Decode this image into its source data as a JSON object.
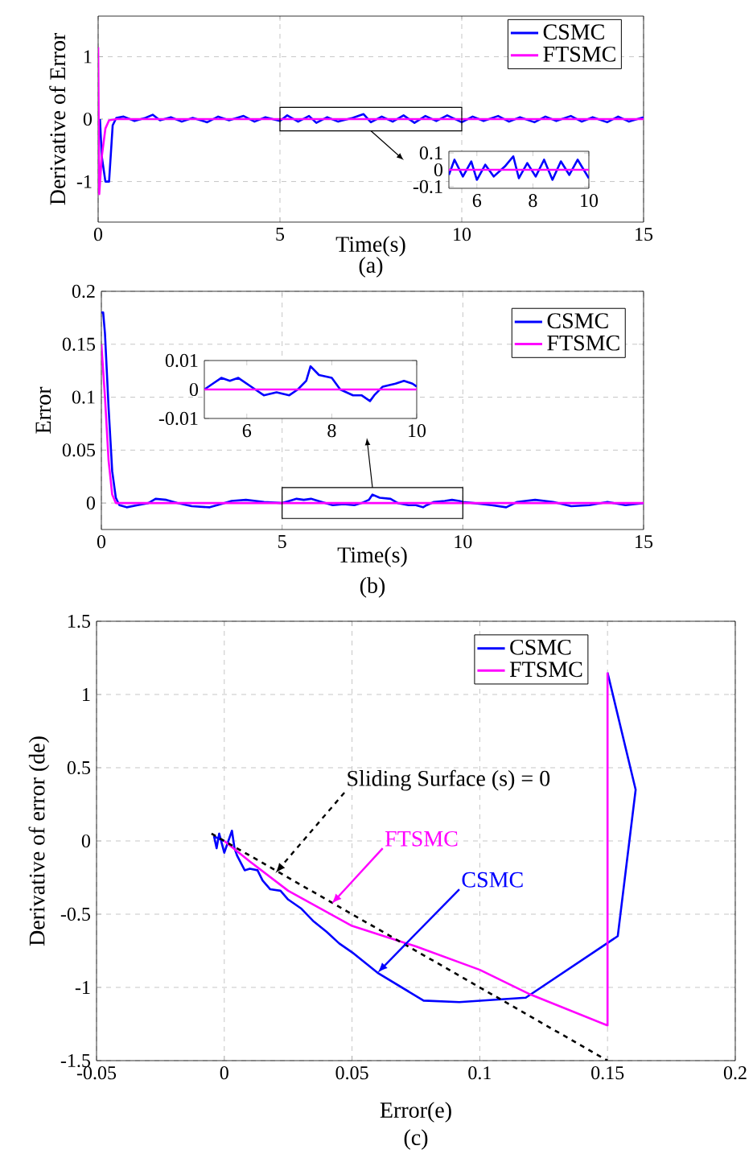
{
  "chart_data": [
    {
      "type": "line",
      "xlabel": "Time(s)",
      "ylabel": "Derivative of Error",
      "xlim": [
        0,
        15
      ],
      "ylim": [
        -1.65,
        1.65
      ],
      "xticks": [
        0,
        5,
        10,
        15
      ],
      "yticks": [
        -1,
        0,
        1
      ],
      "grid": true,
      "legend": "top right",
      "annotations": [
        "(a)"
      ],
      "series": [
        {
          "name": "CSMC",
          "color": "#0000ff",
          "x": [
            0.05,
            0.1,
            0.2,
            0.3,
            0.4,
            0.5,
            0.7,
            1.0,
            1.3,
            1.5,
            1.7,
            2.0,
            2.3,
            2.6,
            3.0,
            3.3,
            3.6,
            4.0,
            4.3,
            4.6,
            5.0,
            5.2,
            5.5,
            5.8,
            6.0,
            6.3,
            6.6,
            7.0,
            7.3,
            7.5,
            7.8,
            8.1,
            8.4,
            8.7,
            9.0,
            9.3,
            9.6,
            10.0,
            10.3,
            10.6,
            11.0,
            11.3,
            11.6,
            12.0,
            12.3,
            12.6,
            13.0,
            13.3,
            13.6,
            14.0,
            14.3,
            14.6,
            15.0
          ],
          "values": [
            0,
            -0.6,
            -1.0,
            -1.0,
            -0.1,
            0.02,
            0.04,
            -0.03,
            0.02,
            0.07,
            -0.02,
            0.03,
            -0.04,
            0.02,
            -0.05,
            0.04,
            -0.02,
            0.05,
            -0.04,
            0.03,
            -0.03,
            0.06,
            -0.04,
            0.05,
            -0.06,
            0.03,
            -0.04,
            0.02,
            0.08,
            -0.05,
            0.04,
            -0.04,
            0.06,
            -0.06,
            0.05,
            -0.03,
            0.06,
            -0.05,
            0.04,
            -0.03,
            0.05,
            -0.04,
            0.03,
            -0.05,
            0.04,
            -0.03,
            0.05,
            -0.04,
            0.03,
            -0.05,
            0.04,
            -0.04,
            0.03
          ]
        },
        {
          "name": "FTSMC",
          "color": "#ff00ff",
          "x": [
            0,
            0.03,
            0.1,
            0.2,
            0.3,
            0.5,
            15
          ],
          "values": [
            1.15,
            -1.2,
            -0.6,
            -0.15,
            -0.02,
            0,
            0
          ]
        }
      ]
    },
    {
      "type": "line",
      "xlim": [
        5,
        10
      ],
      "ylim": [
        -0.11,
        0.11
      ],
      "xticks": [
        6,
        8,
        10
      ],
      "yticks": [
        -0.1,
        0,
        0.1
      ],
      "series": [
        {
          "color": "#0000ff",
          "x": [
            5.0,
            5.2,
            5.5,
            5.8,
            6.0,
            6.3,
            6.6,
            7.0,
            7.3,
            7.5,
            7.8,
            8.1,
            8.4,
            8.7,
            9.0,
            9.3,
            9.6,
            10.0
          ],
          "values": [
            -0.03,
            0.06,
            -0.04,
            0.05,
            -0.06,
            0.03,
            -0.04,
            0.02,
            0.08,
            -0.05,
            0.04,
            -0.04,
            0.06,
            -0.06,
            0.05,
            -0.03,
            0.06,
            -0.05
          ]
        },
        {
          "color": "#ff00ff",
          "x": [
            5,
            10
          ],
          "values": [
            0,
            0
          ]
        }
      ]
    },
    {
      "type": "line",
      "xlabel": "Time(s)",
      "ylabel": "Error",
      "xlim": [
        0,
        15
      ],
      "ylim": [
        -0.025,
        0.2
      ],
      "xticks": [
        0,
        5,
        10,
        15
      ],
      "yticks": [
        0,
        0.05,
        0.1,
        0.15,
        0.2
      ],
      "grid": true,
      "legend": "top right",
      "annotations": [
        "(b)"
      ],
      "series": [
        {
          "name": "CSMC",
          "color": "#0000ff",
          "x": [
            0,
            0.05,
            0.1,
            0.2,
            0.3,
            0.4,
            0.5,
            0.7,
            1.0,
            1.3,
            1.5,
            1.8,
            2.1,
            2.5,
            3.0,
            3.3,
            3.6,
            4.0,
            4.5,
            5.0,
            5.2,
            5.4,
            5.6,
            5.8,
            6.0,
            6.2,
            6.4,
            6.7,
            7.0,
            7.2,
            7.4,
            7.5,
            7.7,
            8.0,
            8.2,
            8.5,
            8.7,
            8.9,
            9.0,
            9.2,
            9.5,
            9.7,
            9.9,
            10.0,
            10.3,
            10.8,
            11.2,
            11.5,
            12.0,
            12.5,
            13.0,
            13.5,
            14.0,
            14.5,
            15
          ],
          "values": [
            0.18,
            0.18,
            0.16,
            0.09,
            0.03,
            0.005,
            -0.002,
            -0.004,
            -0.002,
            0,
            0.004,
            0.003,
            0,
            -0.003,
            -0.004,
            -0.001,
            0.002,
            0.003,
            0.001,
            0,
            0.002,
            0.004,
            0.003,
            0.004,
            0.002,
            0,
            -0.002,
            -0.001,
            -0.002,
            0,
            0.003,
            0.008,
            0.005,
            0.004,
            0,
            -0.002,
            -0.002,
            -0.004,
            -0.002,
            0.001,
            0.002,
            0.003,
            0.002,
            0.001,
            0,
            -0.002,
            -0.004,
            0.001,
            0.003,
            0.001,
            -0.003,
            -0.002,
            0.001,
            -0.002,
            0
          ]
        },
        {
          "name": "FTSMC",
          "color": "#ff00ff",
          "x": [
            0,
            0.1,
            0.2,
            0.3,
            0.4,
            15
          ],
          "values": [
            0.15,
            0.1,
            0.04,
            0.008,
            0,
            0
          ]
        }
      ]
    },
    {
      "type": "line",
      "xlim": [
        5,
        10
      ],
      "ylim": [
        -0.01,
        0.01
      ],
      "xticks": [
        6,
        8,
        10
      ],
      "yticks": [
        -0.01,
        0,
        0.01
      ],
      "series": [
        {
          "color": "#0000ff",
          "x": [
            5.0,
            5.2,
            5.4,
            5.6,
            5.8,
            6.0,
            6.2,
            6.4,
            6.7,
            7.0,
            7.2,
            7.4,
            7.5,
            7.7,
            8.0,
            8.2,
            8.5,
            8.7,
            8.9,
            9.0,
            9.2,
            9.5,
            9.7,
            9.9,
            10.0
          ],
          "values": [
            0,
            0.002,
            0.004,
            0.003,
            0.004,
            0.002,
            0,
            -0.002,
            -0.001,
            -0.002,
            0,
            0.003,
            0.008,
            0.005,
            0.004,
            0,
            -0.002,
            -0.002,
            -0.004,
            -0.002,
            0.001,
            0.002,
            0.003,
            0.002,
            0.001
          ]
        },
        {
          "color": "#ff00ff",
          "x": [
            5,
            10
          ],
          "values": [
            0,
            0
          ]
        }
      ]
    },
    {
      "type": "line",
      "xlabel": "Error(e)",
      "ylabel": "Derivative of error (de)",
      "xlim": [
        -0.05,
        0.2
      ],
      "ylim": [
        -1.5,
        1.5
      ],
      "xticks": [
        -0.05,
        0,
        0.05,
        0.1,
        0.15,
        0.2
      ],
      "yticks": [
        -1.5,
        -1,
        -0.5,
        0,
        0.5,
        1,
        1.5
      ],
      "grid": true,
      "legend": "top right",
      "annotations": [
        "(c)",
        {
          "text": "Sliding Surface (s) = 0",
          "x": 0.02,
          "y": -0.22
        },
        {
          "text": "FTSMC",
          "x": 0.042,
          "y": -0.43
        },
        {
          "text": "CSMC",
          "x": 0.06,
          "y": -0.9
        }
      ],
      "series": [
        {
          "name": "CSMC",
          "color": "#0000ff",
          "x": [
            0.15,
            0.161,
            0.154,
            0.118,
            0.092,
            0.078,
            0.06,
            0.055,
            0.05,
            0.045,
            0.04,
            0.035,
            0.03,
            0.025,
            0.022,
            0.018,
            0.015,
            0.013,
            0.01,
            0.008,
            0.005,
            0.004,
            0.003,
            0,
            -0.002,
            -0.003,
            -0.004,
            0
          ],
          "values": [
            1.15,
            0.35,
            -0.65,
            -1.07,
            -1.1,
            -1.09,
            -0.9,
            -0.83,
            -0.76,
            -0.7,
            -0.62,
            -0.55,
            -0.46,
            -0.4,
            -0.34,
            -0.33,
            -0.27,
            -0.2,
            -0.19,
            -0.2,
            -0.1,
            -0.05,
            0.07,
            -0.08,
            0.05,
            -0.05,
            0.03,
            0
          ]
        },
        {
          "name": "FTSMC",
          "color": "#ff00ff",
          "x": [
            0.15,
            0.15,
            0.12,
            0.1,
            0.075,
            0.05,
            0.025,
            0.01,
            0
          ],
          "values": [
            1.15,
            -1.26,
            -1.05,
            -0.88,
            -0.72,
            -0.58,
            -0.34,
            -0.14,
            0
          ]
        },
        {
          "color": "#000000",
          "line_style": "dashed",
          "x": [
            -0.005,
            0.15
          ],
          "values": [
            0.05,
            -1.5
          ]
        }
      ]
    }
  ]
}
